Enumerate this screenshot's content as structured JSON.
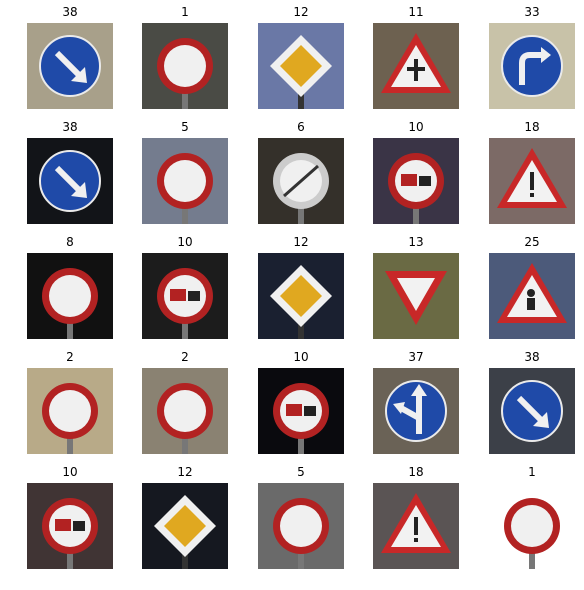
{
  "figure": {
    "items": [
      {
        "label": "38",
        "icon": "keep-right-sign",
        "bg": "#a8a08a"
      },
      {
        "label": "1",
        "icon": "speed-limit-30-sign",
        "bg": "#4a4b45"
      },
      {
        "label": "12",
        "icon": "priority-road-sign",
        "bg": "#6a78a6"
      },
      {
        "label": "11",
        "icon": "right-of-way-sign",
        "bg": "#6d6150"
      },
      {
        "label": "33",
        "icon": "turn-right-ahead-sign",
        "bg": "#c8c2a8"
      },
      {
        "label": "38",
        "icon": "keep-right-sign",
        "bg": "#121418"
      },
      {
        "label": "5",
        "icon": "speed-limit-80-sign",
        "bg": "#747c8e"
      },
      {
        "label": "6",
        "icon": "end-speed-limit-80-sign",
        "bg": "#34302a"
      },
      {
        "label": "10",
        "icon": "no-passing-trucks-sign",
        "bg": "#3a3446"
      },
      {
        "label": "18",
        "icon": "general-caution-sign",
        "bg": "#7c6a66"
      },
      {
        "label": "8",
        "icon": "speed-limit-120-sign",
        "bg": "#111111"
      },
      {
        "label": "10",
        "icon": "no-passing-trucks-sign",
        "bg": "#1c1c1c"
      },
      {
        "label": "12",
        "icon": "priority-road-sign",
        "bg": "#1a2030"
      },
      {
        "label": "13",
        "icon": "yield-sign",
        "bg": "#6a6a44"
      },
      {
        "label": "25",
        "icon": "road-work-sign",
        "bg": "#4c5a7a"
      },
      {
        "label": "2",
        "icon": "speed-limit-50-sign",
        "bg": "#b8aa88"
      },
      {
        "label": "2",
        "icon": "speed-limit-50-sign",
        "bg": "#8a8272"
      },
      {
        "label": "10",
        "icon": "no-passing-trucks-sign",
        "bg": "#0a0a0e"
      },
      {
        "label": "37",
        "icon": "straight-or-left-sign",
        "bg": "#6a6256"
      },
      {
        "label": "38",
        "icon": "keep-right-sign",
        "bg": "#3c4048"
      },
      {
        "label": "10",
        "icon": "no-passing-trucks-sign",
        "bg": "#403434"
      },
      {
        "label": "12",
        "icon": "priority-road-sign",
        "bg": "#151820"
      },
      {
        "label": "5",
        "icon": "speed-limit-80-sign",
        "bg": "#6a6a6a"
      },
      {
        "label": "18",
        "icon": "general-caution-sign",
        "bg": "#5a5454"
      },
      {
        "label": "1",
        "icon": "speed-limit-30-sign",
        "bg": "#ffffff"
      }
    ]
  }
}
